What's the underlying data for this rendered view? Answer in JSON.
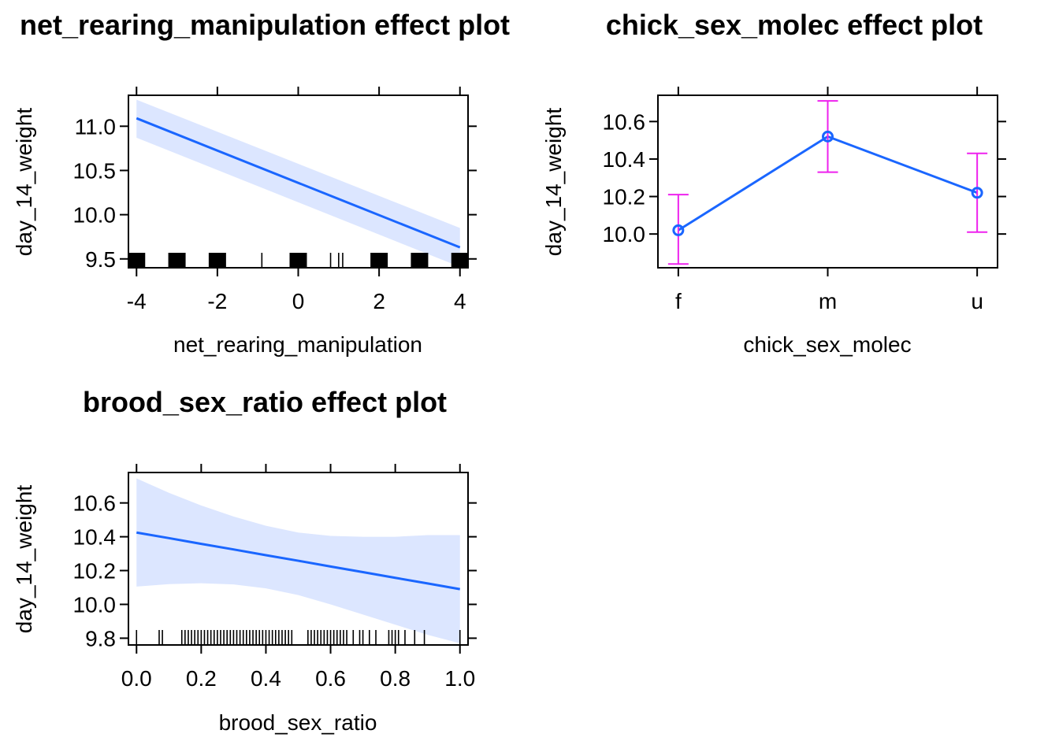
{
  "chart_data": [
    {
      "type": "line",
      "title": "net_rearing_manipulation effect plot",
      "xlabel": "net_rearing_manipulation",
      "ylabel": "day_14_weight",
      "xlim": [
        -4.2,
        4.2
      ],
      "ylim": [
        9.4,
        11.35
      ],
      "x_ticks": [
        -4,
        -2,
        0,
        2,
        4
      ],
      "x_tick_labels": [
        "-4",
        "-2",
        "0",
        "2",
        "4"
      ],
      "y_ticks": [
        9.5,
        10.0,
        10.5,
        11.0
      ],
      "y_tick_labels": [
        "9.5",
        "10.0",
        "10.5",
        "11.0"
      ],
      "series": [
        {
          "x": [
            -4,
            4
          ],
          "fit": [
            11.09,
            9.63
          ],
          "lower": [
            10.87,
            9.41
          ],
          "upper": [
            11.3,
            9.85
          ]
        }
      ],
      "rug": [
        -4,
        -3,
        -2,
        0,
        2,
        3,
        4,
        -0.9,
        0.8,
        1.0,
        1.1,
        1.9,
        2.1,
        2.9,
        3.1,
        3.9
      ],
      "line_color": "#1a66ff",
      "band_color": "#dce6ff"
    },
    {
      "type": "line",
      "title": "chick_sex_molec effect plot",
      "xlabel": "chick_sex_molec",
      "ylabel": "day_14_weight",
      "categories": [
        "f",
        "m",
        "u"
      ],
      "ylim": [
        9.82,
        10.74
      ],
      "y_ticks": [
        10.0,
        10.2,
        10.4,
        10.6
      ],
      "y_tick_labels": [
        "10.0",
        "10.2",
        "10.4",
        "10.6"
      ],
      "series": [
        {
          "values": [
            10.02,
            10.52,
            10.22
          ],
          "lower": [
            9.84,
            10.33,
            10.01
          ],
          "upper": [
            10.21,
            10.71,
            10.43
          ]
        }
      ],
      "line_color": "#1a66ff",
      "errorbar_color": "#ee22ee"
    },
    {
      "type": "line",
      "title": "brood_sex_ratio effect plot",
      "xlabel": "brood_sex_ratio",
      "ylabel": "day_14_weight",
      "xlim": [
        -0.025,
        1.025
      ],
      "ylim": [
        9.76,
        10.78
      ],
      "x_ticks": [
        0.0,
        0.2,
        0.4,
        0.6,
        0.8,
        1.0
      ],
      "x_tick_labels": [
        "0.0",
        "0.2",
        "0.4",
        "0.6",
        "0.8",
        "1.0"
      ],
      "y_ticks": [
        9.8,
        10.0,
        10.2,
        10.4,
        10.6
      ],
      "y_tick_labels": [
        "9.8",
        "10.0",
        "10.2",
        "10.4",
        "10.6"
      ],
      "series": [
        {
          "x": [
            0.0,
            0.1,
            0.2,
            0.3,
            0.4,
            0.5,
            0.6,
            0.7,
            0.8,
            0.9,
            1.0
          ],
          "fit": [
            10.425,
            10.392,
            10.358,
            10.325,
            10.291,
            10.258,
            10.224,
            10.191,
            10.157,
            10.124,
            10.09
          ],
          "lower": [
            10.105,
            10.12,
            10.125,
            10.118,
            10.095,
            10.055,
            10.0,
            9.94,
            9.88,
            9.82,
            9.77
          ],
          "upper": [
            10.745,
            10.66,
            10.585,
            10.52,
            10.465,
            10.425,
            10.405,
            10.4,
            10.4,
            10.41,
            10.41
          ]
        }
      ],
      "rug": [
        0.0,
        0.07,
        0.08,
        0.14,
        0.15,
        0.16,
        0.17,
        0.18,
        0.19,
        0.2,
        0.21,
        0.22,
        0.23,
        0.24,
        0.25,
        0.26,
        0.27,
        0.28,
        0.29,
        0.3,
        0.31,
        0.32,
        0.33,
        0.34,
        0.35,
        0.36,
        0.37,
        0.38,
        0.39,
        0.4,
        0.41,
        0.42,
        0.43,
        0.44,
        0.45,
        0.46,
        0.47,
        0.48,
        0.53,
        0.54,
        0.55,
        0.56,
        0.57,
        0.58,
        0.59,
        0.6,
        0.61,
        0.62,
        0.63,
        0.64,
        0.65,
        0.67,
        0.69,
        0.7,
        0.72,
        0.74,
        0.78,
        0.79,
        0.8,
        0.81,
        0.83,
        0.86,
        0.89,
        1.0
      ],
      "line_color": "#1a66ff",
      "band_color": "#dce6ff"
    }
  ]
}
